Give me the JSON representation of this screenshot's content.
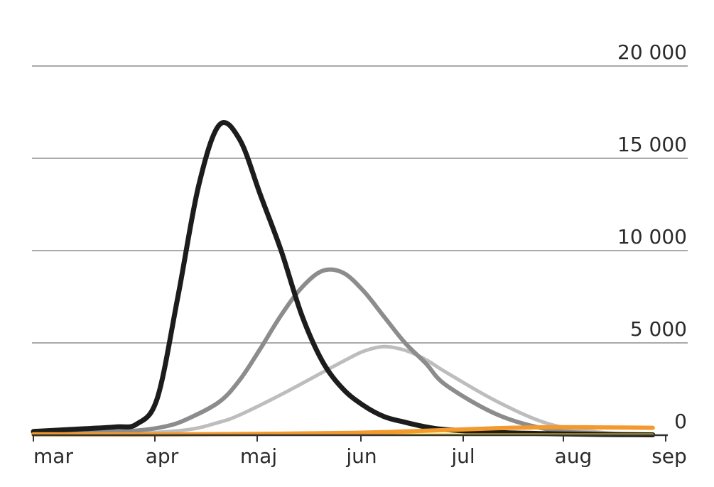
{
  "chart_data": {
    "type": "line",
    "title": "",
    "xlabel": "",
    "ylabel": "",
    "x_tick_labels": [
      "mar",
      "apr",
      "maj",
      "jun",
      "jul",
      "aug",
      "sep"
    ],
    "y_tick_labels": [
      "0",
      "5 000",
      "10 000",
      "15 000",
      "20 000"
    ],
    "y_ticks": [
      0,
      5000,
      10000,
      15000,
      20000
    ],
    "ylim": [
      0,
      20000
    ],
    "x_domain_months": [
      0,
      6.1
    ],
    "grid": true,
    "legend": "none",
    "series": [
      {
        "color": "#1c1c1c",
        "x_months": [
          0,
          0.5,
          0.8,
          1.0,
          1.2,
          1.4,
          1.6,
          1.8,
          2.0,
          2.2,
          2.4,
          2.6,
          2.8,
          3.0,
          3.2,
          3.4,
          3.6,
          3.8,
          4.0,
          4.5,
          5.0,
          5.5,
          6.0
        ],
        "values": [
          200,
          350,
          450,
          600,
          2000,
          7500,
          13500,
          16800,
          16000,
          13000,
          10000,
          6500,
          4000,
          2500,
          1600,
          1000,
          700,
          450,
          300,
          150,
          80,
          40,
          20
        ]
      },
      {
        "color": "#8c8c8c",
        "x_months": [
          0,
          0.5,
          1.0,
          1.3,
          1.5,
          1.8,
          2.0,
          2.2,
          2.4,
          2.6,
          2.8,
          3.0,
          3.2,
          3.4,
          3.6,
          3.8,
          4.0,
          4.5,
          5.0,
          5.5,
          6.0
        ],
        "values": [
          80,
          150,
          250,
          500,
          900,
          1800,
          3000,
          4700,
          6500,
          8000,
          8900,
          8800,
          7800,
          6400,
          5000,
          3900,
          2700,
          1100,
          300,
          80,
          20
        ]
      },
      {
        "color": "#bdbdbd",
        "x_months": [
          0,
          0.5,
          1.0,
          1.5,
          1.8,
          2.0,
          2.4,
          2.8,
          3.0,
          3.2,
          3.4,
          3.6,
          3.8,
          4.0,
          4.5,
          5.0,
          5.5,
          6.0
        ],
        "values": [
          30,
          60,
          100,
          300,
          700,
          1100,
          2200,
          3400,
          4000,
          4550,
          4800,
          4600,
          4100,
          3400,
          1800,
          600,
          150,
          30
        ]
      },
      {
        "color": "#f39a2e",
        "x_months": [
          0,
          1.0,
          2.0,
          3.0,
          3.5,
          4.0,
          4.5,
          5.0,
          5.5,
          6.0
        ],
        "values": [
          50,
          40,
          60,
          120,
          180,
          280,
          380,
          430,
          420,
          400
        ]
      },
      {
        "color": "#f2d21b",
        "x_months": [
          0,
          1.0,
          2.0,
          3.0,
          4.0,
          5.0,
          6.0
        ],
        "values": [
          10,
          10,
          20,
          30,
          40,
          40,
          40
        ]
      }
    ]
  }
}
